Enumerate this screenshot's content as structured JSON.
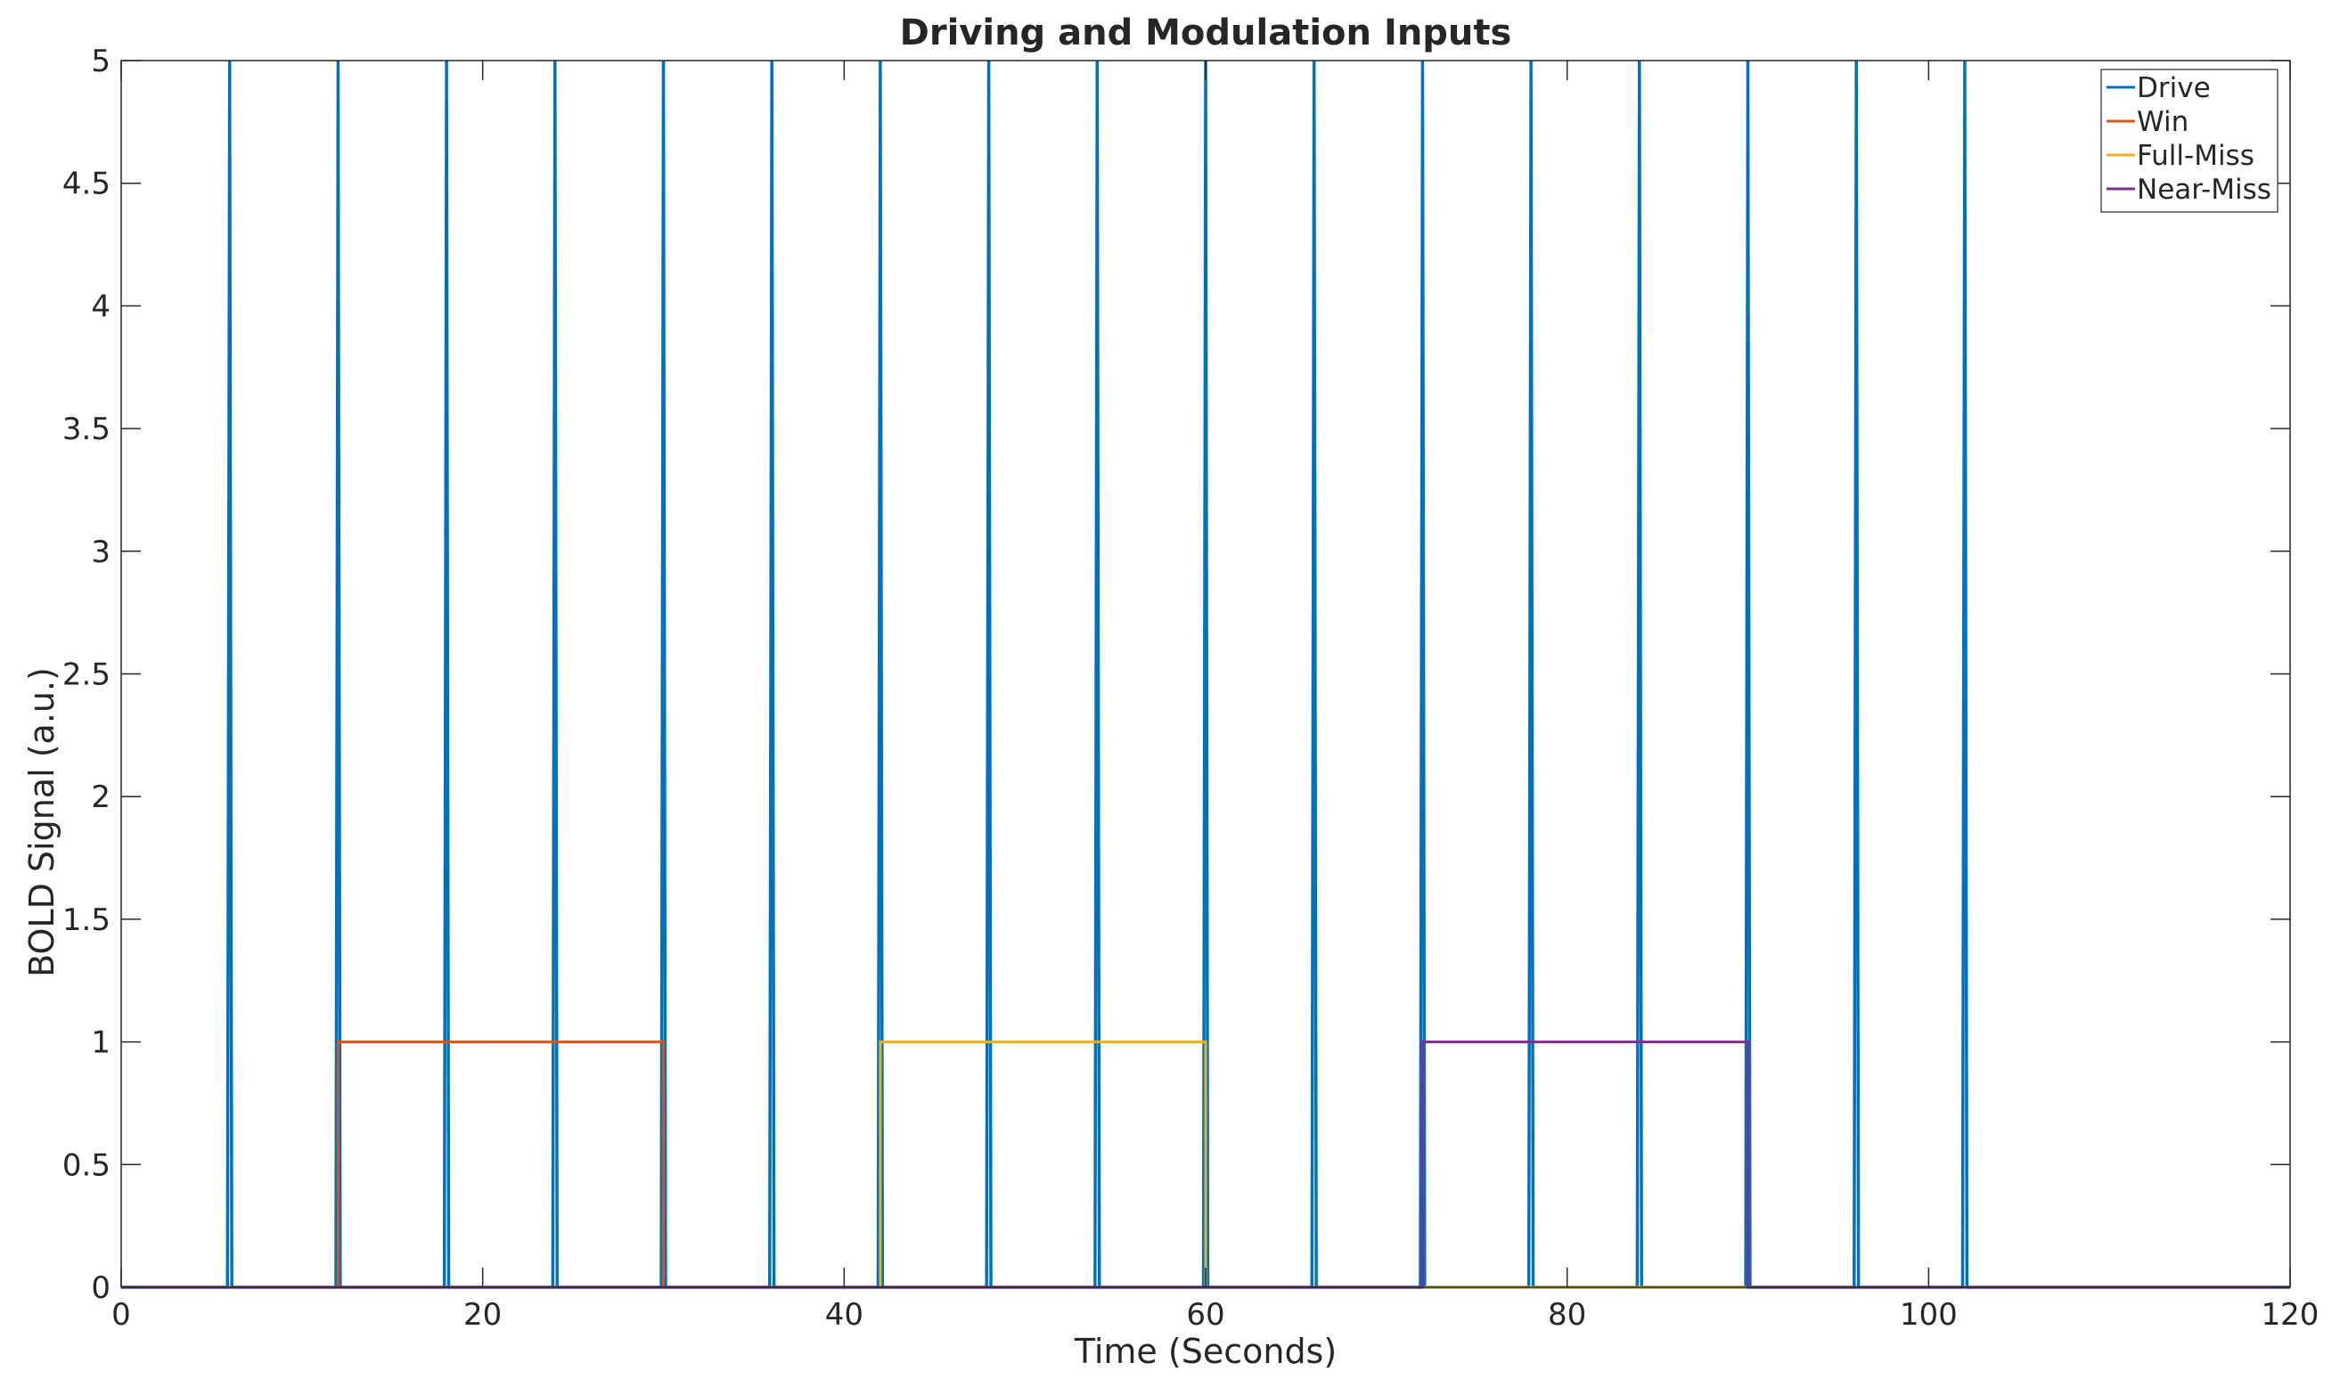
{
  "chart_data": {
    "type": "line",
    "title": "Driving and Modulation Inputs",
    "xlabel": "Time (Seconds)",
    "ylabel": "BOLD Signal (a.u.)",
    "xlim": [
      0,
      120
    ],
    "ylim": [
      0,
      5
    ],
    "xticks": [
      0,
      20,
      40,
      60,
      80,
      100,
      120
    ],
    "xtick_labels": [
      "0",
      "20",
      "40",
      "60",
      "80",
      "100",
      "120"
    ],
    "yticks": [
      0,
      0.5,
      1,
      1.5,
      2,
      2.5,
      3,
      3.5,
      4,
      4.5,
      5
    ],
    "ytick_labels": [
      "0",
      "0.5",
      "1",
      "1.5",
      "2",
      "2.5",
      "3",
      "3.5",
      "4",
      "4.5",
      "5"
    ],
    "grid": false,
    "legend_position": "top-right",
    "series": [
      {
        "name": "Drive",
        "color": "#0072BD",
        "kind": "impulses",
        "baseline": 0,
        "peak": 5,
        "impulse_times": [
          6,
          12,
          18,
          24,
          30,
          36,
          42,
          48,
          54,
          60,
          66,
          72,
          78,
          84,
          90,
          96,
          102
        ]
      },
      {
        "name": "Win",
        "color": "#D95319",
        "kind": "step",
        "x": [
          0,
          12,
          12,
          30,
          30,
          120
        ],
        "y": [
          0,
          0,
          1,
          1,
          0,
          0
        ]
      },
      {
        "name": "Full-Miss",
        "color": "#EDB120",
        "kind": "step",
        "x": [
          0,
          42,
          42,
          60,
          60,
          120
        ],
        "y": [
          0,
          0,
          1,
          1,
          0,
          0
        ]
      },
      {
        "name": "Near-Miss",
        "color": "#7E2F8E",
        "kind": "step",
        "x": [
          0,
          72,
          72,
          90,
          90,
          120
        ],
        "y": [
          0,
          0,
          1,
          1,
          0,
          0
        ]
      }
    ]
  }
}
